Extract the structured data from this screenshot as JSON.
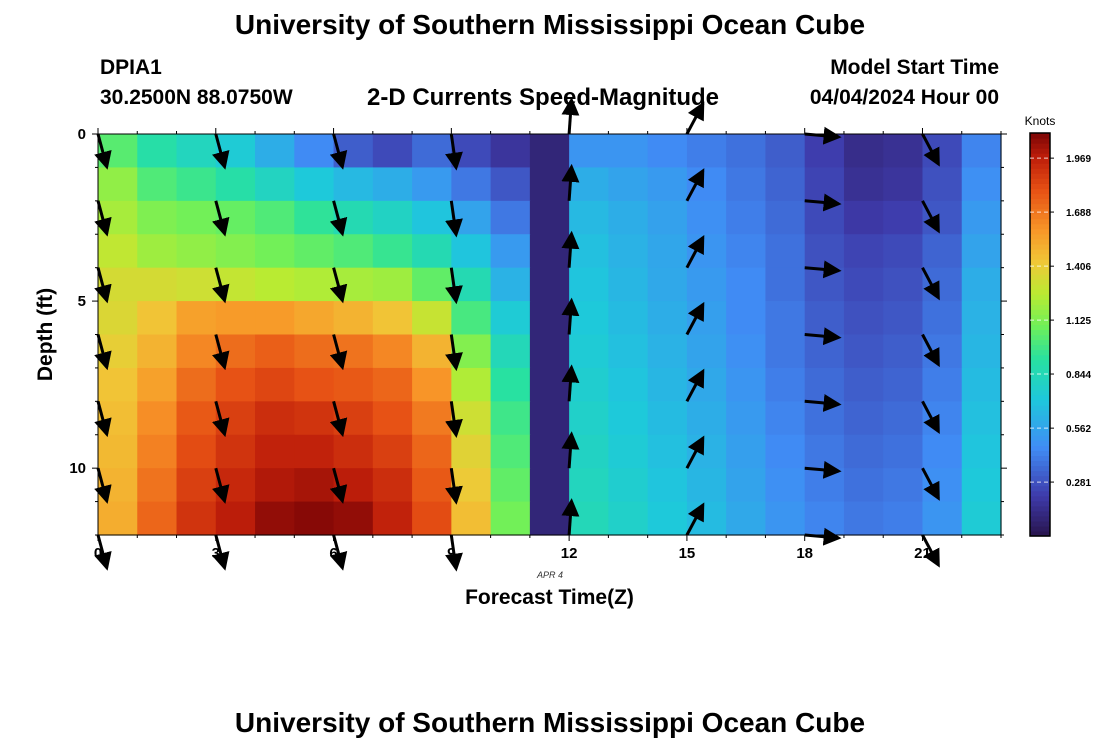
{
  "header": {
    "title": "University of Southern Mississippi Ocean Cube",
    "station": "DPIA1",
    "coords": "30.2500N  88.0750W",
    "chart_title": "2-D Currents Speed-Magnitude",
    "start_label": "Model Start Time",
    "start_value": "04/04/2024 Hour 00"
  },
  "footer": {
    "repeat_title": "University of Southern Mississippi Ocean Cube"
  },
  "chart_data": {
    "type": "heatmap",
    "title": "2-D Currents Speed-Magnitude",
    "xlabel": "Forecast Time(Z)",
    "ylabel": "Depth (ft)",
    "x_date_label": "APR 4",
    "xlim": [
      0,
      23
    ],
    "ylim": [
      0,
      12
    ],
    "y_inverted": true,
    "x_ticks": [
      0,
      3,
      6,
      9,
      12,
      15,
      18,
      21
    ],
    "y_ticks": [
      0,
      5,
      10
    ],
    "x_tick_labels": [
      "0",
      "3",
      "6",
      "9",
      "12",
      "15",
      "18",
      "21"
    ],
    "y_tick_labels": [
      "0",
      "5",
      "10"
    ],
    "colorbar": {
      "label": "Knots",
      "min": 0,
      "max": 2.1,
      "tick_values": [
        1.969,
        1.688,
        1.406,
        1.125,
        0.844,
        0.562,
        0.281
      ],
      "tick_labels": [
        "1.969",
        "1.688",
        "1.406",
        "1.125",
        "0.844",
        "0.562",
        "0.281"
      ]
    },
    "hours": [
      0,
      1,
      2,
      3,
      4,
      5,
      6,
      7,
      8,
      9,
      10,
      11,
      12,
      13,
      14,
      15,
      16,
      17,
      18,
      19,
      20,
      21,
      22
    ],
    "depths": [
      0,
      1,
      2,
      3,
      4,
      5,
      6,
      7,
      8,
      9,
      10,
      11
    ],
    "speed_knots": [
      [
        1.04,
        0.9,
        0.82,
        0.74,
        0.6,
        0.46,
        0.32,
        0.26,
        0.36,
        0.26,
        0.18,
        0.1,
        0.5,
        0.5,
        0.46,
        0.42,
        0.38,
        0.32,
        0.22,
        0.14,
        0.16,
        0.26,
        0.44
      ],
      [
        1.17,
        1.02,
        0.97,
        0.9,
        0.81,
        0.72,
        0.65,
        0.6,
        0.52,
        0.4,
        0.3,
        0.1,
        0.6,
        0.56,
        0.52,
        0.46,
        0.4,
        0.34,
        0.24,
        0.16,
        0.18,
        0.28,
        0.48
      ],
      [
        1.22,
        1.13,
        1.1,
        1.07,
        1.02,
        0.94,
        0.86,
        0.8,
        0.7,
        0.56,
        0.4,
        0.1,
        0.65,
        0.6,
        0.55,
        0.48,
        0.42,
        0.36,
        0.26,
        0.2,
        0.22,
        0.3,
        0.52
      ],
      [
        1.28,
        1.2,
        1.17,
        1.14,
        1.1,
        1.06,
        1.02,
        0.96,
        0.86,
        0.7,
        0.52,
        0.1,
        0.68,
        0.62,
        0.57,
        0.5,
        0.44,
        0.38,
        0.28,
        0.24,
        0.26,
        0.34,
        0.56
      ],
      [
        1.34,
        1.34,
        1.32,
        1.29,
        1.26,
        1.24,
        1.22,
        1.2,
        1.06,
        0.86,
        0.62,
        0.1,
        0.7,
        0.64,
        0.58,
        0.52,
        0.46,
        0.38,
        0.3,
        0.26,
        0.28,
        0.36,
        0.6
      ],
      [
        1.36,
        1.44,
        1.56,
        1.58,
        1.58,
        1.54,
        1.5,
        1.44,
        1.3,
        1.0,
        0.74,
        0.1,
        0.72,
        0.66,
        0.6,
        0.54,
        0.46,
        0.4,
        0.32,
        0.28,
        0.3,
        0.38,
        0.62
      ],
      [
        1.4,
        1.5,
        1.64,
        1.72,
        1.76,
        1.72,
        1.7,
        1.64,
        1.5,
        1.14,
        0.84,
        0.1,
        0.74,
        0.68,
        0.62,
        0.56,
        0.48,
        0.4,
        0.34,
        0.3,
        0.32,
        0.4,
        0.64
      ],
      [
        1.44,
        1.56,
        1.72,
        1.8,
        1.84,
        1.8,
        1.78,
        1.74,
        1.6,
        1.24,
        0.92,
        0.1,
        0.76,
        0.7,
        0.64,
        0.58,
        0.5,
        0.42,
        0.36,
        0.32,
        0.34,
        0.42,
        0.66
      ],
      [
        1.46,
        1.62,
        1.78,
        1.86,
        1.92,
        1.9,
        1.86,
        1.8,
        1.68,
        1.32,
        0.98,
        0.1,
        0.78,
        0.72,
        0.66,
        0.6,
        0.52,
        0.44,
        0.38,
        0.34,
        0.36,
        0.44,
        0.68
      ],
      [
        1.48,
        1.66,
        1.82,
        1.9,
        1.96,
        1.96,
        1.92,
        1.86,
        1.74,
        1.38,
        1.02,
        0.1,
        0.8,
        0.74,
        0.68,
        0.62,
        0.54,
        0.46,
        0.4,
        0.36,
        0.38,
        0.46,
        0.7
      ],
      [
        1.5,
        1.7,
        1.86,
        1.94,
        2.0,
        2.02,
        1.98,
        1.92,
        1.78,
        1.42,
        1.06,
        0.1,
        0.82,
        0.76,
        0.7,
        0.64,
        0.56,
        0.48,
        0.42,
        0.38,
        0.4,
        0.48,
        0.72
      ],
      [
        1.52,
        1.74,
        1.9,
        1.98,
        2.06,
        2.08,
        2.06,
        1.96,
        1.82,
        1.46,
        1.1,
        0.1,
        0.84,
        0.78,
        0.72,
        0.66,
        0.58,
        0.5,
        0.44,
        0.4,
        0.42,
        0.5,
        0.74
      ]
    ],
    "vector_hours": [
      0,
      3,
      6,
      9,
      12,
      15,
      18,
      21
    ],
    "vector_depths": [
      0,
      2,
      4,
      6,
      8,
      10,
      12
    ],
    "vector_direction_deg": [
      165,
      165,
      165,
      172,
      4,
      28,
      95,
      152
    ]
  }
}
